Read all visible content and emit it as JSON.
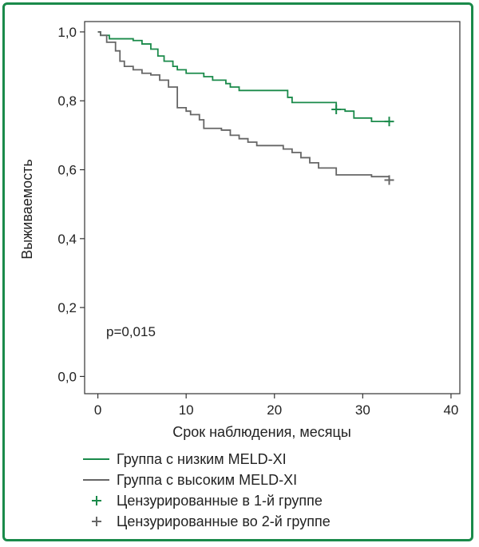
{
  "chart_data": {
    "type": "line",
    "xlabel": "Срок наблюдения, месяцы",
    "ylabel": "Выживаемость",
    "xlim": [
      -1.5,
      41
    ],
    "ylim": [
      -0.05,
      1.03
    ],
    "x_ticks": [
      "0",
      "10",
      "20",
      "30",
      "40"
    ],
    "x_tick_values": [
      0,
      10,
      20,
      30,
      40
    ],
    "y_ticks": [
      "0,0",
      "0,2",
      "0,4",
      "0,6",
      "0,8",
      "1,0"
    ],
    "y_tick_values": [
      0,
      0.2,
      0.4,
      0.6,
      0.8,
      1.0
    ],
    "annotation": "p=0,015",
    "grid": false,
    "legend_position": "bottom",
    "series": [
      {
        "name": "Группа с низким MELD-XI",
        "color": "#1a8a4a",
        "steps": [
          [
            0,
            1.0
          ],
          [
            0.3,
            0.99
          ],
          [
            1.3,
            0.98
          ],
          [
            4,
            0.975
          ],
          [
            5,
            0.965
          ],
          [
            6,
            0.95
          ],
          [
            6.8,
            0.93
          ],
          [
            7.5,
            0.915
          ],
          [
            8.5,
            0.9
          ],
          [
            9,
            0.89
          ],
          [
            10,
            0.88
          ],
          [
            12,
            0.87
          ],
          [
            13,
            0.86
          ],
          [
            14.5,
            0.85
          ],
          [
            15,
            0.84
          ],
          [
            16,
            0.83
          ],
          [
            21.5,
            0.81
          ],
          [
            22,
            0.795
          ],
          [
            27,
            0.775
          ],
          [
            28,
            0.77
          ],
          [
            29,
            0.75
          ],
          [
            31,
            0.74
          ],
          [
            33,
            0.74
          ]
        ],
        "censored": [
          [
            27,
            0.775
          ],
          [
            33,
            0.74
          ]
        ]
      },
      {
        "name": "Группа с высоким MELD-XI",
        "color": "#666666",
        "steps": [
          [
            0,
            1.0
          ],
          [
            0.3,
            0.99
          ],
          [
            1,
            0.97
          ],
          [
            2,
            0.945
          ],
          [
            2.5,
            0.915
          ],
          [
            3,
            0.9
          ],
          [
            4,
            0.89
          ],
          [
            5,
            0.88
          ],
          [
            6,
            0.875
          ],
          [
            7,
            0.86
          ],
          [
            8,
            0.84
          ],
          [
            9,
            0.78
          ],
          [
            10,
            0.77
          ],
          [
            10.5,
            0.76
          ],
          [
            11.5,
            0.745
          ],
          [
            12,
            0.72
          ],
          [
            14,
            0.715
          ],
          [
            15,
            0.7
          ],
          [
            16,
            0.69
          ],
          [
            17,
            0.68
          ],
          [
            18,
            0.67
          ],
          [
            21,
            0.66
          ],
          [
            22,
            0.65
          ],
          [
            23,
            0.635
          ],
          [
            24,
            0.62
          ],
          [
            25,
            0.605
          ],
          [
            27,
            0.585
          ],
          [
            31,
            0.58
          ],
          [
            33,
            0.57
          ]
        ],
        "censored": [
          [
            33,
            0.57
          ]
        ]
      }
    ],
    "legend": [
      {
        "label": "Группа с низким MELD-XI",
        "kind": "line",
        "color": "#1a8a4a"
      },
      {
        "label": "Группа с высоким MELD-XI",
        "kind": "line",
        "color": "#666666"
      },
      {
        "label": "Цензурированные в 1-й группе",
        "kind": "plus",
        "color": "#1a8a4a"
      },
      {
        "label": "Цензурированные во 2-й группе",
        "kind": "plus",
        "color": "#666666"
      }
    ]
  }
}
